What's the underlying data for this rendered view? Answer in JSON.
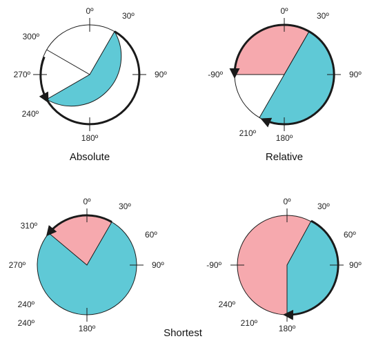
{
  "colors": {
    "blue": "#5fc9d6",
    "pink": "#f6a9ae",
    "white": "#ffffff",
    "stroke": "#1a1a1a"
  },
  "captions": {
    "absolute": "Absolute",
    "relative": "Relative",
    "shortest": "Shortest"
  },
  "dials": [
    {
      "id": "absolute",
      "labels": {
        "top": "0º",
        "a30": "30º",
        "a300": "300º",
        "left": "270º",
        "right": "90º",
        "a240": "240º",
        "bottom": "180º"
      }
    },
    {
      "id": "relative",
      "labels": {
        "top": "0º",
        "a30": "30º",
        "left": "-90º",
        "right": "90º",
        "a210": "210º",
        "bottom": "180º"
      }
    },
    {
      "id": "shortest-1",
      "labels": {
        "top": "0º",
        "a30": "30º",
        "a310": "310º",
        "a60": "60º",
        "left": "270º",
        "right": "90º",
        "a240a": "240º",
        "a240b": "240º",
        "bottom": "180º"
      }
    },
    {
      "id": "shortest-2",
      "labels": {
        "top": "0º",
        "a30": "30º",
        "a60": "60º",
        "left": "-90º",
        "right": "90º",
        "a240": "240º",
        "a210": "210º",
        "bottom": "180º"
      }
    }
  ]
}
